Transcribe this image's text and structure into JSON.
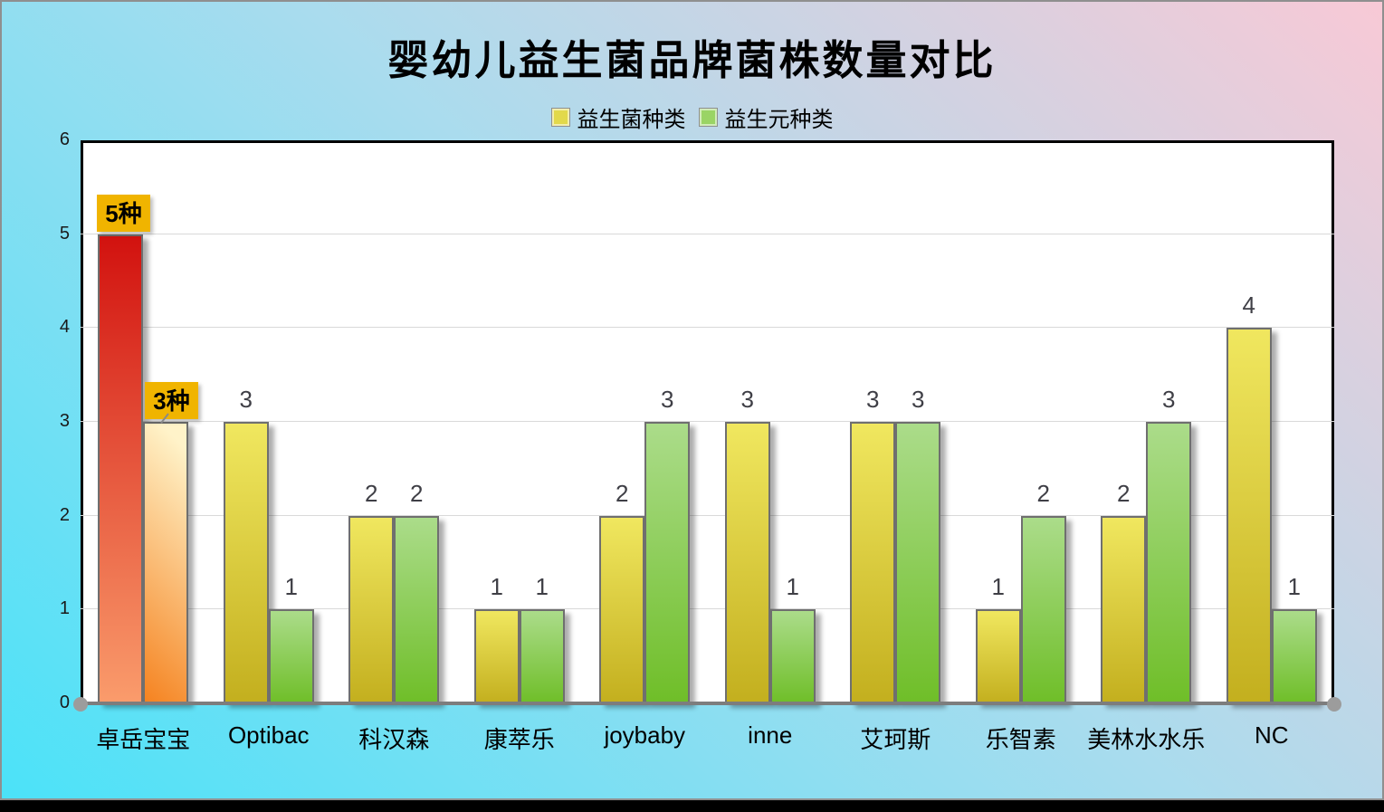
{
  "title": "婴幼儿益生菌品牌菌株数量对比",
  "legend": [
    {
      "label": "益生菌种类",
      "swatch_color": "#e2d94b",
      "swatch_border": "#8f8f8f"
    },
    {
      "label": "益生元种类",
      "swatch_color": "#9ad465",
      "swatch_border": "#8f8f8f"
    }
  ],
  "chart_data": {
    "type": "bar",
    "title": "婴幼儿益生菌品牌菌株数量对比",
    "categories": [
      "卓岳宝宝",
      "Optibac",
      "科汉森",
      "康萃乐",
      "joybaby",
      "inne",
      "艾珂斯",
      "乐智素",
      "美林水水乐",
      "NC"
    ],
    "series": [
      {
        "name": "益生菌种类",
        "values": [
          5,
          3,
          2,
          1,
          2,
          3,
          3,
          1,
          2,
          4
        ],
        "color_top": "#f0e75f",
        "color_bottom": "#c3af1e"
      },
      {
        "name": "益生元种类",
        "values": [
          3,
          1,
          2,
          1,
          3,
          1,
          3,
          2,
          3,
          1
        ],
        "color_top": "#abdc8a",
        "color_bottom": "#6fbe28"
      }
    ],
    "ylim": [
      0,
      6
    ],
    "yticks": [
      0,
      1,
      2,
      3,
      4,
      5,
      6
    ],
    "grid": true,
    "legend_position": "top",
    "plot_bg": "#ffffff",
    "grid_color": "#d9d9d9",
    "bar_border_color": "#6f6f6f",
    "data_label_color": "#3f3f46",
    "highlight": {
      "category": "卓岳宝宝",
      "category_index": 0,
      "badge_labels": [
        "5种",
        "3种"
      ],
      "badge_bg": "#f0b400",
      "badge_text_color": "#000000",
      "bar1_gradient": [
        "#d2120f",
        "#fa9c6c"
      ],
      "bar2_gradient": [
        "#f5821f",
        "#fff3c9"
      ]
    }
  },
  "background": {
    "gradient_bottom_left": "#4be2f8",
    "gradient_top_right": "#f8c9d6"
  }
}
